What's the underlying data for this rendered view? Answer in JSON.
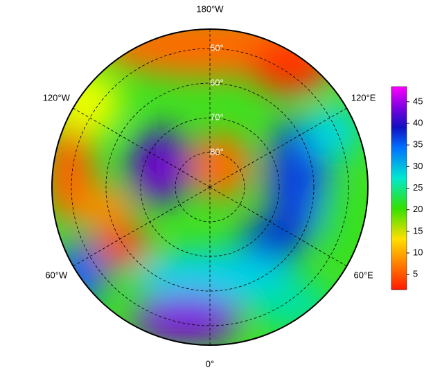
{
  "map": {
    "projection": "north-polar-stereographic",
    "meridians": [
      {
        "value": 180,
        "label": "180°W"
      },
      {
        "value": -120,
        "label": "120°W"
      },
      {
        "value": 120,
        "label": "120°E"
      },
      {
        "value": -60,
        "label": "60°W"
      },
      {
        "value": 60,
        "label": "60°E"
      },
      {
        "value": 0,
        "label": "0°"
      }
    ],
    "parallels": [
      {
        "value": 50,
        "label": "50°"
      },
      {
        "value": 60,
        "label": "60°"
      },
      {
        "value": 70,
        "label": "70°"
      },
      {
        "value": 80,
        "label": "80°"
      }
    ],
    "colorbar": {
      "lim": [
        1.5,
        48.5
      ],
      "ticks": [
        5,
        10,
        15,
        20,
        25,
        30,
        35,
        40,
        45
      ]
    }
  }
}
